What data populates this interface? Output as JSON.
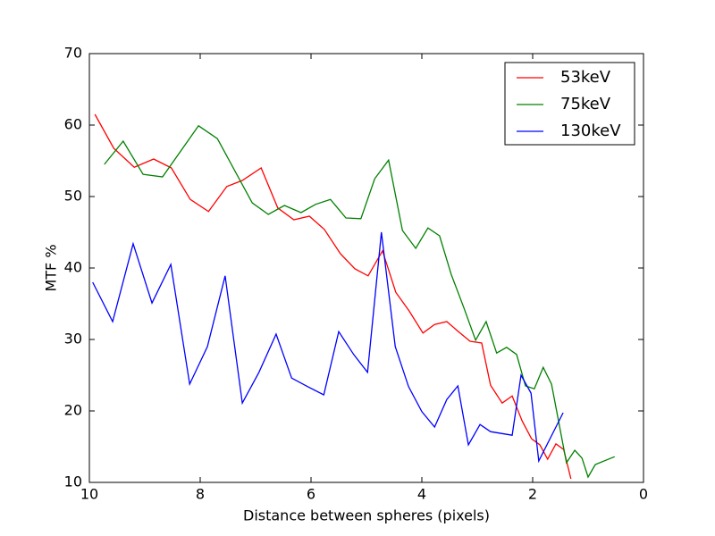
{
  "chart_data": {
    "type": "line",
    "xlabel": "Distance between spheres (pixels)",
    "ylabel": "MTF %",
    "xlim": [
      10,
      0
    ],
    "xticks": [
      10,
      8,
      6,
      4,
      2,
      0
    ],
    "ylim": [
      10,
      70
    ],
    "yticks": [
      10,
      20,
      30,
      40,
      50,
      60,
      70
    ],
    "grid": false,
    "legend": "upper right",
    "series": [
      {
        "name": "53keV",
        "color": "#ff0000",
        "x": [
          9.9,
          9.56,
          9.19,
          8.84,
          8.52,
          8.18,
          7.85,
          7.52,
          7.24,
          6.9,
          6.6,
          6.31,
          6.03,
          5.76,
          5.47,
          5.21,
          4.97,
          4.71,
          4.47,
          4.23,
          3.98,
          3.77,
          3.55,
          3.34,
          3.13,
          2.92,
          2.76,
          2.55,
          2.37,
          2.19,
          2.02,
          1.87,
          1.73,
          1.58,
          1.44,
          1.31
        ],
        "values": [
          61.5,
          56.75,
          54.1,
          55.25,
          54,
          49.6,
          47.9,
          51.4,
          52.25,
          54,
          48.4,
          46.75,
          47.25,
          45.4,
          42,
          39.9,
          38.9,
          42.4,
          36.6,
          34,
          30.9,
          32.1,
          32.5,
          31.1,
          29.75,
          29.5,
          23.6,
          21.1,
          22.1,
          18.6,
          16.1,
          15.25,
          13.25,
          15.4,
          14.6,
          10.5
        ]
      },
      {
        "name": "75keV",
        "color": "#008000",
        "x": [
          9.73,
          9.39,
          9.03,
          8.68,
          8.03,
          7.69,
          7.06,
          6.77,
          6.48,
          6.18,
          5.92,
          5.65,
          5.37,
          5.1,
          4.85,
          4.6,
          4.35,
          4.11,
          3.89,
          3.68,
          3.47,
          3.24,
          3.03,
          2.84,
          2.65,
          2.47,
          2.29,
          2.13,
          1.97,
          1.81,
          1.66,
          1.39,
          1.24,
          1.11,
          1.0,
          0.87,
          0.52
        ],
        "values": [
          54.5,
          57.75,
          53.1,
          52.75,
          59.9,
          58.1,
          49.1,
          47.5,
          48.75,
          47.75,
          48.9,
          49.6,
          47,
          46.9,
          52.5,
          55.1,
          45.25,
          42.75,
          45.6,
          44.5,
          39.1,
          34.4,
          29.9,
          32.5,
          28.1,
          28.9,
          27.9,
          23.5,
          23.1,
          26.1,
          23.75,
          12.75,
          14.5,
          13.4,
          10.75,
          12.5,
          13.6
        ]
      },
      {
        "name": "130keV",
        "color": "#0000ff",
        "x": [
          9.94,
          9.58,
          9.21,
          8.87,
          8.53,
          8.19,
          7.87,
          7.55,
          7.24,
          6.94,
          6.63,
          6.35,
          6.06,
          5.77,
          5.5,
          5.23,
          4.98,
          4.73,
          4.48,
          4.24,
          4.0,
          3.77,
          3.55,
          3.35,
          3.16,
          2.95,
          2.76,
          2.37,
          2.21,
          2.03,
          1.89,
          1.45
        ],
        "values": [
          38,
          32.5,
          43.4,
          35.1,
          40.5,
          23.75,
          29,
          38.9,
          21.1,
          25.4,
          30.75,
          24.6,
          23.4,
          22.25,
          31.1,
          27.9,
          25.4,
          45,
          29,
          23.4,
          19.9,
          17.75,
          21.6,
          23.5,
          15.25,
          18.1,
          17.1,
          16.6,
          25,
          22.5,
          13,
          19.75
        ]
      }
    ]
  }
}
